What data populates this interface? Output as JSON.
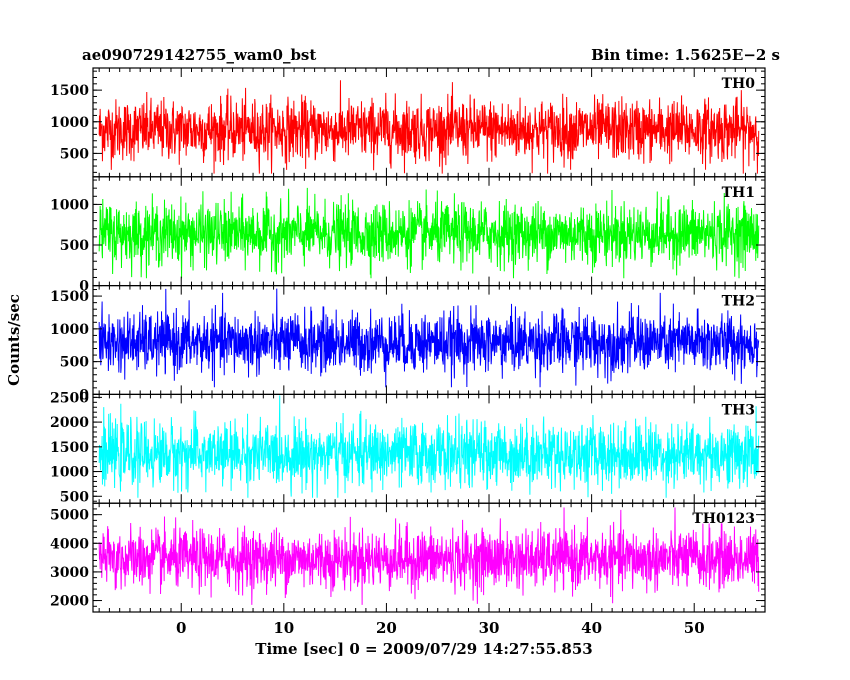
{
  "header": {
    "title": "ae090729142755_wam0_bst",
    "bin_time": "Bin time: 1.5625E−2 s"
  },
  "chart_data": {
    "type": "line",
    "title": "ae090729142755_wam0_bst",
    "xlabel": "Time [sec] 0 = 2009/07/29 14:27:55.853",
    "ylabel": "Counts/sec",
    "xlim": [
      -8.6,
      56.9
    ],
    "x_ticks": [
      0,
      10,
      20,
      30,
      40,
      50
    ],
    "x_data_range": [
      -8.0,
      56.3
    ],
    "panels": [
      {
        "name": "TH0",
        "color": "#ff0000",
        "ylim": [
          130,
          1850
        ],
        "yticks": [
          500,
          1000,
          1500
        ],
        "signal": {
          "mean": 870,
          "sigma": 240,
          "min": 180,
          "max": 1780
        }
      },
      {
        "name": "TH1",
        "color": "#00ff00",
        "ylim": [
          0,
          1340
        ],
        "yticks": [
          0,
          500,
          1000
        ],
        "signal": {
          "mean": 640,
          "sigma": 190,
          "min": 90,
          "max": 1330
        }
      },
      {
        "name": "TH2",
        "color": "#0000ff",
        "ylim": [
          0,
          1660
        ],
        "yticks": [
          0,
          500,
          1000,
          1500
        ],
        "signal": {
          "mean": 790,
          "sigma": 230,
          "min": 110,
          "max": 1640
        }
      },
      {
        "name": "TH3",
        "color": "#00ffff",
        "ylim": [
          360,
          2560
        ],
        "yticks": [
          500,
          1000,
          1500,
          2000,
          2500
        ],
        "signal": {
          "mean": 1350,
          "sigma": 320,
          "min": 470,
          "max": 2540
        }
      },
      {
        "name": "TH0123",
        "color": "#ff00ff",
        "ylim": [
          1600,
          5400
        ],
        "yticks": [
          2000,
          3000,
          4000,
          5000
        ],
        "signal": {
          "mean": 3450,
          "sigma": 520,
          "min": 1850,
          "max": 5250
        }
      }
    ]
  }
}
